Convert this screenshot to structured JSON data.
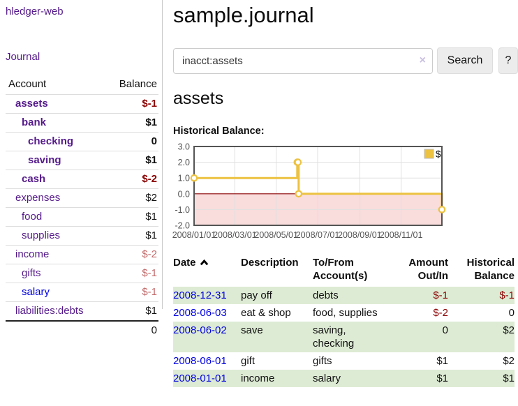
{
  "sidebar": {
    "brand": "hledger-web",
    "nav": [
      {
        "label": "Journal"
      }
    ],
    "table": {
      "account_header": "Account",
      "balance_header": "Balance",
      "rows": [
        {
          "name": "assets",
          "balance": "$-1",
          "indent": 0,
          "bold": true,
          "unvisited": false
        },
        {
          "name": "bank",
          "balance": "$1",
          "indent": 1,
          "bold": true,
          "unvisited": false
        },
        {
          "name": "checking",
          "balance": "0",
          "indent": 2,
          "bold": true,
          "unvisited": false
        },
        {
          "name": "saving",
          "balance": "$1",
          "indent": 2,
          "bold": true,
          "unvisited": false
        },
        {
          "name": "cash",
          "balance": "$-2",
          "indent": 1,
          "bold": true,
          "unvisited": false
        },
        {
          "name": "expenses",
          "balance": "$2",
          "indent": 0,
          "bold": false,
          "unvisited": false
        },
        {
          "name": "food",
          "balance": "$1",
          "indent": 1,
          "bold": false,
          "unvisited": false
        },
        {
          "name": "supplies",
          "balance": "$1",
          "indent": 1,
          "bold": false,
          "unvisited": false
        },
        {
          "name": "income",
          "balance": "$-2",
          "indent": 0,
          "bold": false,
          "unvisited": false
        },
        {
          "name": "gifts",
          "balance": "$-1",
          "indent": 1,
          "bold": false,
          "unvisited": false
        },
        {
          "name": "salary",
          "balance": "$-1",
          "indent": 1,
          "bold": false,
          "unvisited": true
        },
        {
          "name": "liabilities:debts",
          "balance": "$1",
          "indent": 0,
          "bold": false,
          "unvisited": false
        }
      ],
      "total": "0"
    }
  },
  "main": {
    "title": "sample.journal",
    "search": {
      "value": "inacct:assets",
      "clear_icon": "×",
      "search_button": "Search",
      "help_button": "?"
    },
    "account_title": "assets",
    "section_title": "Historical Balance:"
  },
  "chart_data": {
    "type": "line",
    "title": "Historical Balance:",
    "style": "step-after",
    "x_range": [
      "2008-01-01",
      "2008-12-31"
    ],
    "ylim": [
      -2,
      3
    ],
    "y_ticks": [
      "3.0",
      "2.0",
      "1.0",
      "0.0",
      "-1.0",
      "-2.0"
    ],
    "x_tick_labels": [
      "2008/01/01",
      "2008/03/01",
      "2008/05/01",
      "2008/07/01",
      "2008/09/01",
      "2008/11/01"
    ],
    "series": [
      {
        "name": "$",
        "color": "#edc240",
        "points": [
          {
            "date": "2008-01-01",
            "value": 1
          },
          {
            "date": "2008-06-01",
            "value": 2
          },
          {
            "date": "2008-06-02",
            "value": 2
          },
          {
            "date": "2008-06-03",
            "value": 0
          },
          {
            "date": "2008-12-31",
            "value": -1
          }
        ]
      }
    ],
    "legend": {
      "position": "top-right",
      "label": "$"
    },
    "grid": true,
    "frame_color": "#545454",
    "grid_color": "#e0e0e0",
    "zero_line_color": "#8b0000",
    "negative_region_fill": "#f9dcdc"
  },
  "register": {
    "columns": [
      "Date",
      "Description",
      "To/From Account(s)",
      "Amount Out/In",
      "Historical Balance"
    ],
    "sort": {
      "column": "Date",
      "direction": "asc"
    },
    "rows": [
      {
        "date": "2008-12-31",
        "description": "pay off",
        "accounts": "debts",
        "amount": "$-1",
        "balance": "$-1"
      },
      {
        "date": "2008-06-03",
        "description": "eat & shop",
        "accounts": "food, supplies",
        "amount": "$-2",
        "balance": "0"
      },
      {
        "date": "2008-06-02",
        "description": "save",
        "accounts": "saving, checking",
        "amount": "0",
        "balance": "$2"
      },
      {
        "date": "2008-06-01",
        "description": "gift",
        "accounts": "gifts",
        "amount": "$1",
        "balance": "$2"
      },
      {
        "date": "2008-01-01",
        "description": "income",
        "accounts": "salary",
        "amount": "$1",
        "balance": "$1"
      }
    ]
  }
}
